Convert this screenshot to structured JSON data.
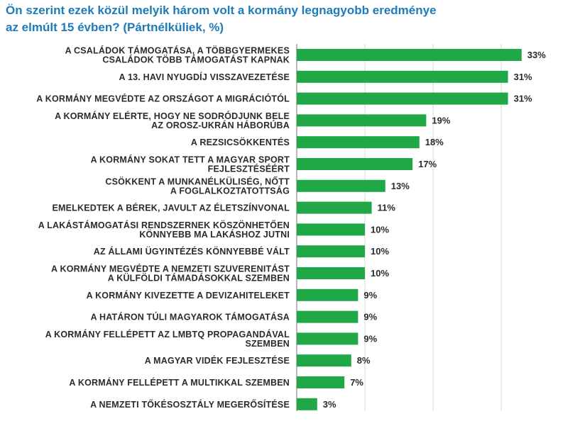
{
  "chart_data": {
    "type": "bar",
    "orientation": "horizontal",
    "title": "Ön szerint ezek közül melyik három volt a kormány legnagyobb eredménye az elmúlt 15 évben? (Pártnélküliek, %)",
    "title_lines": [
      "Ön szerint ezek közül melyik három volt a kormány legnagyobb eredménye",
      "az elmúlt 15 évben? (Pártnélküliek, %)"
    ],
    "categories": [
      [
        "A CSALÁDOK TÁMOGATÁSA, A TÖBBGYERMEKES",
        "CSALÁDOK TÖBB TÁMOGATÁST KAPNAK"
      ],
      [
        "A 13. HAVI NYUGDÍJ VISSZAVEZETÉSE"
      ],
      [
        "A KORMÁNY MEGVÉDTE AZ ORSZÁGOT A MIGRÁCIÓTÓL"
      ],
      [
        "A KORMÁNY ELÉRTE, HOGY NE SODRÓDJUNK BELE",
        "AZ OROSZ-UKRÁN HÁBORÚBA"
      ],
      [
        "A REZSICSÖKKENTÉS"
      ],
      [
        "A KORMÁNY SOKAT TETT A MAGYAR SPORT",
        "FEJLESZTÉSÉÉRT"
      ],
      [
        "CSÖKKENT A MUNKANÉLKÜLISÉG, NŐTT",
        "A FOGLALKOZTATOTTSÁG"
      ],
      [
        "EMELKEDTEK A BÉREK, JAVULT AZ ÉLETSZÍNVONAL"
      ],
      [
        "A LAKÁSTÁMOGATÁSI RENDSZERNEK KÖSZÖNHETŐEN",
        "KÖNNYEBB MA LAKÁSHOZ JUTNI"
      ],
      [
        "AZ ÁLLAMI ÜGYINTÉZÉS KÖNNYEBBÉ VÁLT"
      ],
      [
        "A KORMÁNY MEGVÉDTE A NEMZETI SZUVERENITÁST",
        "A KÜLFÖLDI TÁMADÁSOKKAL SZEMBEN"
      ],
      [
        "A KORMÁNY KIVEZETTE A DEVIZAHITELEKET"
      ],
      [
        "A HATÁRON TÚLI MAGYAROK TÁMOGATÁSA"
      ],
      [
        "A KORMÁNY FELLÉPETT AZ LMBTQ PROPAGANDÁVAL",
        "SZEMBEN"
      ],
      [
        "A MAGYAR VIDÉK FEJLESZTÉSE"
      ],
      [
        "A KORMÁNY FELLÉPETT A MULTIKKAL SZEMBEN"
      ],
      [
        "A NEMZETI TŐKÉSOSZTÁLY MEGERŐSÍTÉSE"
      ]
    ],
    "values": [
      33,
      31,
      31,
      19,
      18,
      17,
      13,
      11,
      10,
      10,
      10,
      9,
      9,
      9,
      8,
      7,
      3
    ],
    "value_labels": [
      "33%",
      "31%",
      "31%",
      "19%",
      "18%",
      "17%",
      "13%",
      "11%",
      "10%",
      "10%",
      "10%",
      "9%",
      "9%",
      "9%",
      "8%",
      "7%",
      "3%"
    ],
    "xlim": [
      0,
      40
    ],
    "gridlines_at": [
      10,
      20,
      30
    ],
    "grid": true,
    "legend": "none",
    "bar_color": "#21a846",
    "grid_color": "#d9d9d9",
    "axis_color": "#8c8c8c",
    "title_color": "#1f7ab8",
    "text_color": "#2b2b2b"
  }
}
